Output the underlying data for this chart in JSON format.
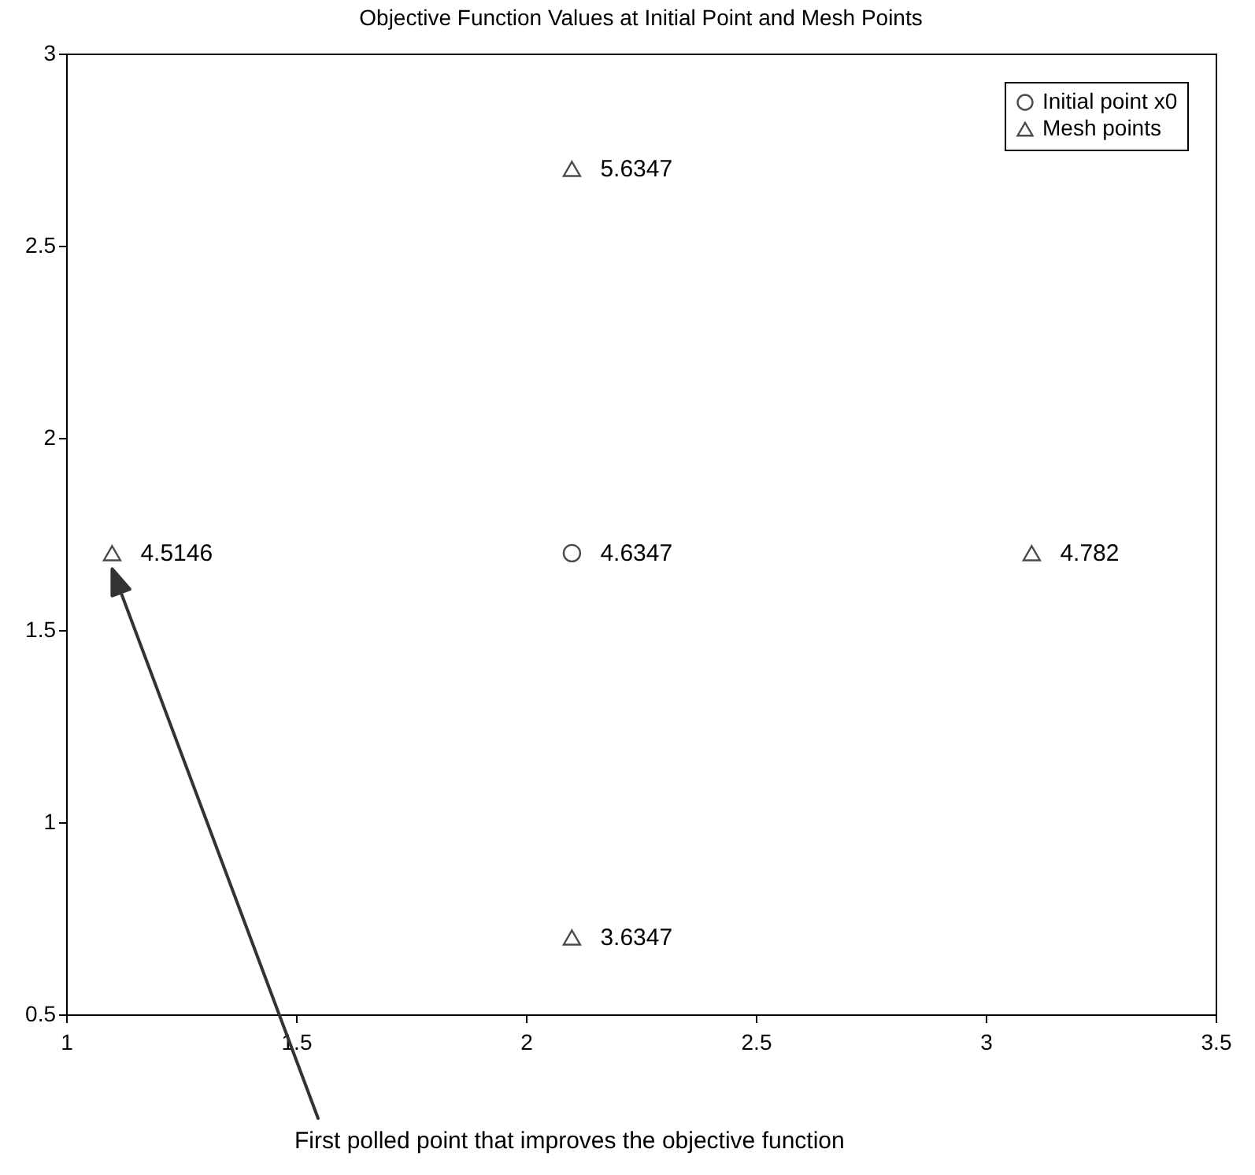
{
  "chart_data": {
    "type": "scatter",
    "title": "Objective Function Values at Initial Point and Mesh Points",
    "series": [
      {
        "name": "Initial point x0",
        "color": "#000000",
        "marker": "circle",
        "x": [
          2.1
        ],
        "values": [
          1.7
        ]
      },
      {
        "name": "Mesh points",
        "color": "#000000",
        "marker": "triangle",
        "x": [
          3.1,
          2.1,
          1.1,
          2.1
        ],
        "values": [
          1.7,
          2.7,
          1.7,
          0.7
        ]
      }
    ],
    "xlim": [
      1,
      3.5
    ],
    "xticks": [
      {
        "value": 1,
        "label": "1"
      },
      1.5,
      {
        "value": 2,
        "label": "2"
      },
      2.5,
      {
        "value": 3,
        "label": "3"
      },
      3.5
    ],
    "ylim": [
      0.5,
      3
    ],
    "yticks": [
      0.5,
      {
        "value": 1,
        "label": "1"
      },
      1.5,
      {
        "value": 2,
        "label": "2"
      },
      2.5,
      {
        "value": 3,
        "label": "3"
      }
    ],
    "grid": false,
    "legend": "top right",
    "annotations": [
      {
        "text": "4.6347",
        "x": 2.1,
        "y": 1.7
      },
      {
        "text": "4.782",
        "x": 3.1,
        "y": 1.7
      },
      {
        "text": "5.6347",
        "x": 2.1,
        "y": 2.7
      },
      {
        "text": "4.5146",
        "x": 1.1,
        "y": 1.7
      },
      {
        "text": "3.6347",
        "x": 2.1,
        "y": 0.7
      },
      "First polled point that improves the objective function"
    ]
  }
}
